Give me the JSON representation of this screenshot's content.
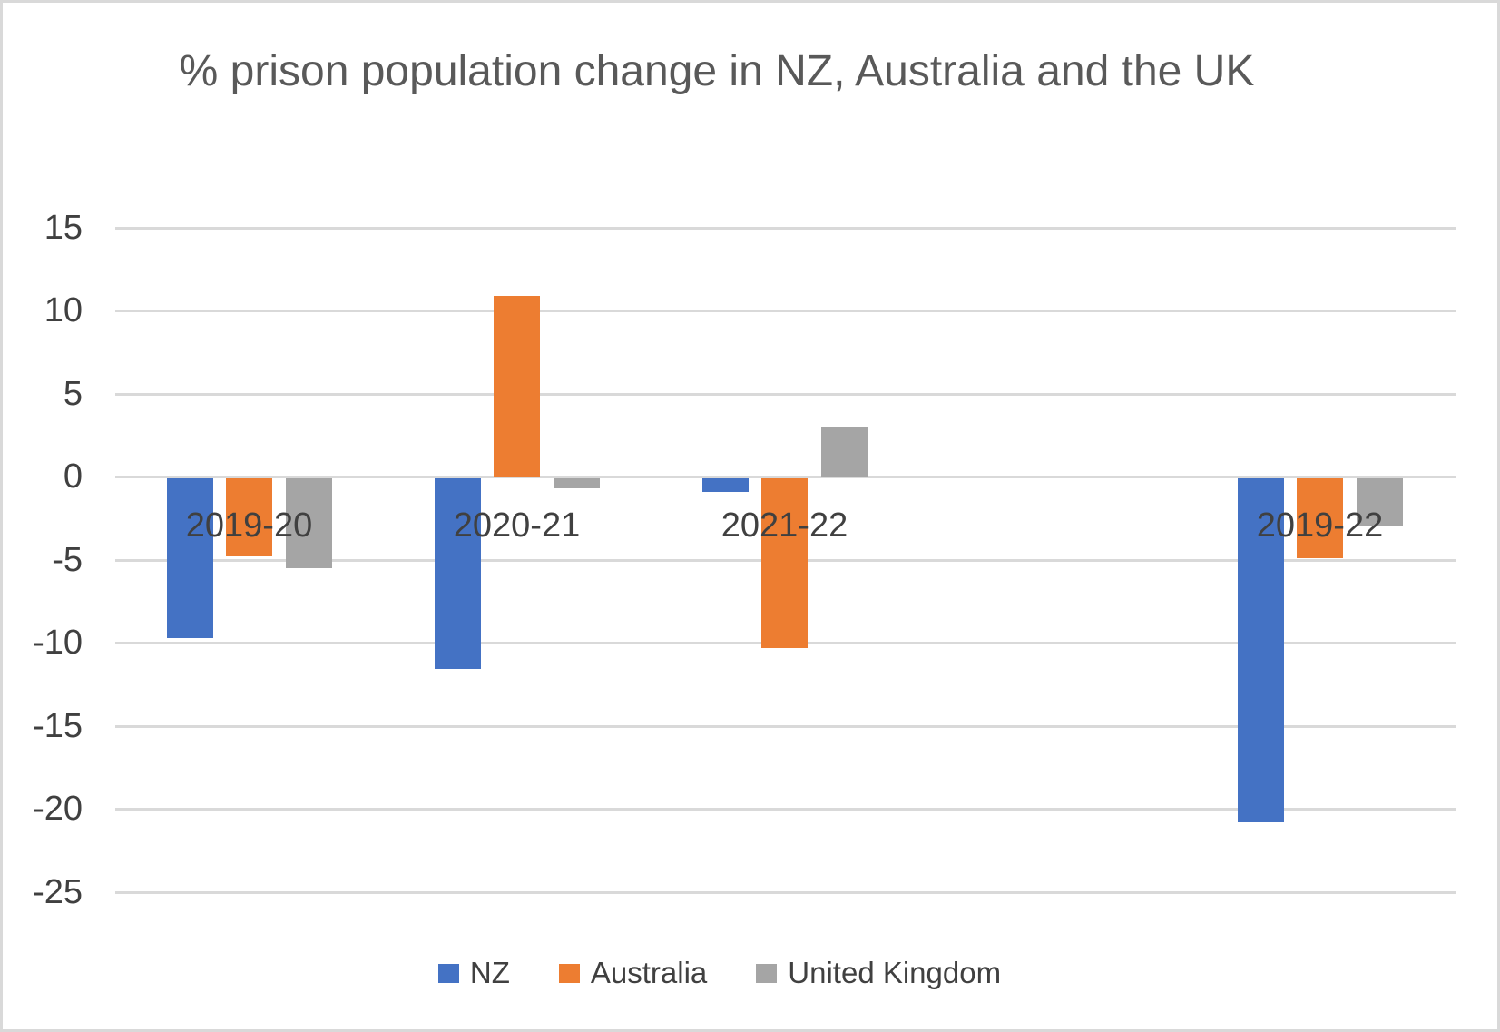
{
  "chart_data": {
    "type": "bar",
    "title": "% prison population change in NZ, Australia and the UK",
    "categories": [
      "2019-20",
      "2020-21",
      "2021-22",
      "2019-22"
    ],
    "series": [
      {
        "name": "NZ",
        "color": "#4472C4",
        "values": [
          -9.6,
          -11.5,
          -0.8,
          -20.7
        ]
      },
      {
        "name": "Australia",
        "color": "#ED7D31",
        "values": [
          -4.7,
          10.9,
          -10.2,
          -4.8
        ]
      },
      {
        "name": "United Kingdom",
        "color": "#A5A5A5",
        "values": [
          -5.4,
          -0.6,
          3.0,
          -2.9
        ]
      }
    ],
    "ylim": [
      -25,
      15
    ],
    "yticks": [
      15,
      10,
      5,
      0,
      -5,
      -10,
      -15,
      -20,
      -25
    ],
    "grid": true,
    "legend_position": "bottom",
    "category_slots": [
      0,
      1,
      2,
      4
    ],
    "total_slots": 5,
    "gridline_color": "#D9D9D9",
    "text_color": "#404040",
    "title_color": "#595959"
  }
}
